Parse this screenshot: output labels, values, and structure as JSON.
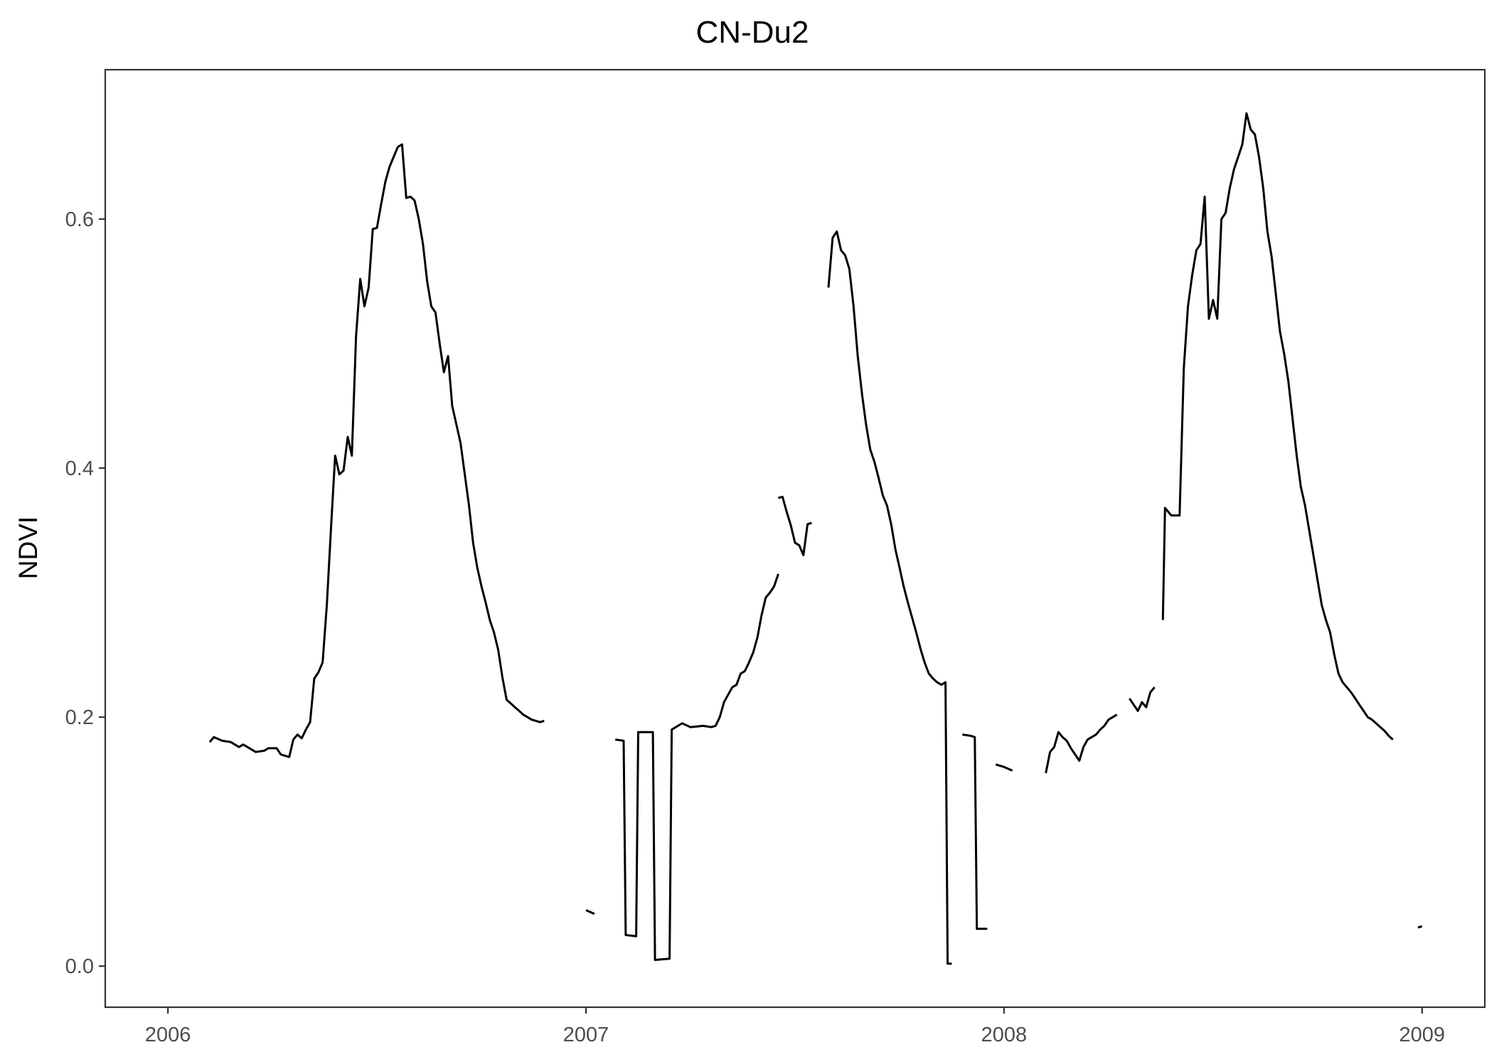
{
  "chart_data": {
    "type": "line",
    "title": "CN-Du2",
    "xlabel": "",
    "ylabel": "NDVI",
    "x_ticks": [
      "2006",
      "2007",
      "2008",
      "2009"
    ],
    "y_ticks": [
      "0.0",
      "0.2",
      "0.4",
      "0.6"
    ],
    "xlim": [
      2005.85,
      2009.15
    ],
    "ylim": [
      -0.033,
      0.72
    ],
    "grid": false,
    "legend": "none",
    "line_color": "#000000",
    "series": [
      {
        "segments": [
          [
            [
              2006.1,
              0.18
            ],
            [
              2006.11,
              0.184
            ],
            [
              2006.13,
              0.181
            ],
            [
              2006.15,
              0.18
            ],
            [
              2006.17,
              0.176
            ],
            [
              2006.18,
              0.178
            ],
            [
              2006.2,
              0.174
            ],
            [
              2006.21,
              0.172
            ],
            [
              2006.23,
              0.173
            ],
            [
              2006.24,
              0.175
            ],
            [
              2006.26,
              0.175
            ],
            [
              2006.27,
              0.17
            ],
            [
              2006.29,
              0.168
            ],
            [
              2006.3,
              0.182
            ],
            [
              2006.31,
              0.186
            ],
            [
              2006.32,
              0.183
            ],
            [
              2006.33,
              0.19
            ],
            [
              2006.34,
              0.196
            ],
            [
              2006.35,
              0.231
            ],
            [
              2006.36,
              0.236
            ],
            [
              2006.37,
              0.244
            ],
            [
              2006.38,
              0.29
            ],
            [
              2006.39,
              0.352
            ],
            [
              2006.4,
              0.41
            ],
            [
              2006.41,
              0.395
            ],
            [
              2006.42,
              0.398
            ],
            [
              2006.43,
              0.425
            ],
            [
              2006.44,
              0.41
            ],
            [
              2006.45,
              0.506
            ],
            [
              2006.46,
              0.552
            ],
            [
              2006.47,
              0.53
            ],
            [
              2006.48,
              0.545
            ],
            [
              2006.49,
              0.592
            ],
            [
              2006.5,
              0.593
            ],
            [
              2006.51,
              0.612
            ],
            [
              2006.52,
              0.63
            ],
            [
              2006.53,
              0.642
            ],
            [
              2006.54,
              0.65
            ],
            [
              2006.55,
              0.658
            ],
            [
              2006.56,
              0.66
            ],
            [
              2006.57,
              0.617
            ],
            [
              2006.58,
              0.618
            ],
            [
              2006.59,
              0.615
            ],
            [
              2006.6,
              0.6
            ],
            [
              2006.61,
              0.58
            ],
            [
              2006.62,
              0.55
            ],
            [
              2006.63,
              0.53
            ],
            [
              2006.64,
              0.525
            ],
            [
              2006.65,
              0.5
            ],
            [
              2006.66,
              0.477
            ],
            [
              2006.67,
              0.49
            ],
            [
              2006.68,
              0.45
            ],
            [
              2006.69,
              0.435
            ],
            [
              2006.7,
              0.42
            ],
            [
              2006.71,
              0.395
            ],
            [
              2006.72,
              0.37
            ],
            [
              2006.73,
              0.34
            ],
            [
              2006.74,
              0.32
            ],
            [
              2006.75,
              0.305
            ],
            [
              2006.76,
              0.292
            ],
            [
              2006.77,
              0.278
            ],
            [
              2006.78,
              0.268
            ],
            [
              2006.79,
              0.254
            ],
            [
              2006.8,
              0.232
            ],
            [
              2006.81,
              0.214
            ],
            [
              2006.82,
              0.211
            ],
            [
              2006.83,
              0.208
            ],
            [
              2006.84,
              0.205
            ],
            [
              2006.85,
              0.202
            ],
            [
              2006.86,
              0.2
            ],
            [
              2006.87,
              0.198
            ],
            [
              2006.88,
              0.197
            ],
            [
              2006.89,
              0.196
            ],
            [
              2006.9,
              0.197
            ]
          ],
          [
            [
              2007.0,
              0.045
            ],
            [
              2007.02,
              0.042
            ]
          ],
          [
            [
              2007.07,
              0.182
            ],
            [
              2007.09,
              0.181
            ],
            [
              2007.095,
              0.025
            ],
            [
              2007.12,
              0.024
            ],
            [
              2007.125,
              0.188
            ],
            [
              2007.16,
              0.188
            ],
            [
              2007.165,
              0.005
            ],
            [
              2007.2,
              0.006
            ],
            [
              2007.205,
              0.19
            ],
            [
              2007.23,
              0.195
            ],
            [
              2007.25,
              0.192
            ],
            [
              2007.28,
              0.193
            ],
            [
              2007.3,
              0.192
            ],
            [
              2007.31,
              0.193
            ],
            [
              2007.32,
              0.2
            ],
            [
              2007.33,
              0.212
            ],
            [
              2007.34,
              0.218
            ],
            [
              2007.35,
              0.224
            ],
            [
              2007.36,
              0.226
            ],
            [
              2007.37,
              0.235
            ],
            [
              2007.38,
              0.237
            ],
            [
              2007.39,
              0.244
            ],
            [
              2007.4,
              0.252
            ],
            [
              2007.41,
              0.264
            ],
            [
              2007.42,
              0.282
            ],
            [
              2007.43,
              0.296
            ],
            [
              2007.44,
              0.3
            ],
            [
              2007.45,
              0.305
            ],
            [
              2007.46,
              0.315
            ]
          ],
          [
            [
              2007.46,
              0.376
            ],
            [
              2007.47,
              0.377
            ],
            [
              2007.48,
              0.365
            ],
            [
              2007.49,
              0.354
            ],
            [
              2007.5,
              0.34
            ],
            [
              2007.51,
              0.338
            ],
            [
              2007.52,
              0.33
            ],
            [
              2007.53,
              0.355
            ],
            [
              2007.54,
              0.356
            ]
          ],
          [
            [
              2007.58,
              0.545
            ],
            [
              2007.59,
              0.585
            ],
            [
              2007.6,
              0.59
            ],
            [
              2007.61,
              0.575
            ],
            [
              2007.62,
              0.571
            ],
            [
              2007.63,
              0.56
            ],
            [
              2007.64,
              0.53
            ],
            [
              2007.65,
              0.49
            ],
            [
              2007.66,
              0.46
            ],
            [
              2007.67,
              0.435
            ],
            [
              2007.68,
              0.415
            ],
            [
              2007.69,
              0.405
            ],
            [
              2007.7,
              0.392
            ],
            [
              2007.71,
              0.378
            ],
            [
              2007.72,
              0.37
            ],
            [
              2007.73,
              0.355
            ],
            [
              2007.74,
              0.335
            ],
            [
              2007.75,
              0.32
            ],
            [
              2007.76,
              0.305
            ],
            [
              2007.77,
              0.292
            ],
            [
              2007.78,
              0.28
            ],
            [
              2007.79,
              0.268
            ],
            [
              2007.8,
              0.255
            ],
            [
              2007.81,
              0.244
            ],
            [
              2007.82,
              0.235
            ],
            [
              2007.83,
              0.231
            ],
            [
              2007.84,
              0.228
            ],
            [
              2007.85,
              0.226
            ],
            [
              2007.86,
              0.228
            ],
            [
              2007.865,
              0.002
            ],
            [
              2007.875,
              0.002
            ]
          ],
          [
            [
              2007.9,
              0.186
            ],
            [
              2007.92,
              0.185
            ],
            [
              2007.93,
              0.184
            ],
            [
              2007.935,
              0.03
            ],
            [
              2007.96,
              0.03
            ]
          ],
          [
            [
              2007.98,
              0.162
            ],
            [
              2008.0,
              0.16
            ],
            [
              2008.02,
              0.157
            ]
          ],
          [
            [
              2008.1,
              0.155
            ],
            [
              2008.11,
              0.172
            ],
            [
              2008.12,
              0.176
            ],
            [
              2008.13,
              0.188
            ],
            [
              2008.14,
              0.184
            ],
            [
              2008.15,
              0.181
            ],
            [
              2008.16,
              0.175
            ],
            [
              2008.17,
              0.17
            ],
            [
              2008.18,
              0.165
            ],
            [
              2008.19,
              0.176
            ],
            [
              2008.2,
              0.182
            ],
            [
              2008.21,
              0.184
            ],
            [
              2008.22,
              0.186
            ],
            [
              2008.23,
              0.19
            ],
            [
              2008.24,
              0.193
            ],
            [
              2008.25,
              0.198
            ],
            [
              2008.26,
              0.2
            ],
            [
              2008.27,
              0.202
            ]
          ],
          [
            [
              2008.3,
              0.215
            ],
            [
              2008.31,
              0.21
            ],
            [
              2008.32,
              0.205
            ],
            [
              2008.33,
              0.212
            ],
            [
              2008.34,
              0.208
            ],
            [
              2008.35,
              0.22
            ],
            [
              2008.36,
              0.224
            ]
          ],
          [
            [
              2008.38,
              0.278
            ],
            [
              2008.385,
              0.368
            ],
            [
              2008.4,
              0.362
            ],
            [
              2008.42,
              0.362
            ],
            [
              2008.43,
              0.48
            ],
            [
              2008.44,
              0.53
            ],
            [
              2008.45,
              0.555
            ],
            [
              2008.46,
              0.575
            ],
            [
              2008.47,
              0.58
            ],
            [
              2008.48,
              0.618
            ],
            [
              2008.49,
              0.52
            ],
            [
              2008.5,
              0.535
            ],
            [
              2008.51,
              0.52
            ],
            [
              2008.52,
              0.6
            ],
            [
              2008.53,
              0.605
            ],
            [
              2008.54,
              0.625
            ],
            [
              2008.55,
              0.64
            ],
            [
              2008.56,
              0.65
            ],
            [
              2008.57,
              0.66
            ],
            [
              2008.58,
              0.685
            ],
            [
              2008.59,
              0.672
            ],
            [
              2008.6,
              0.668
            ],
            [
              2008.61,
              0.65
            ],
            [
              2008.62,
              0.625
            ],
            [
              2008.63,
              0.59
            ],
            [
              2008.64,
              0.57
            ],
            [
              2008.65,
              0.54
            ],
            [
              2008.66,
              0.51
            ],
            [
              2008.67,
              0.492
            ],
            [
              2008.68,
              0.47
            ],
            [
              2008.69,
              0.44
            ],
            [
              2008.7,
              0.41
            ],
            [
              2008.71,
              0.385
            ],
            [
              2008.72,
              0.37
            ],
            [
              2008.73,
              0.35
            ],
            [
              2008.74,
              0.33
            ],
            [
              2008.75,
              0.31
            ],
            [
              2008.76,
              0.29
            ],
            [
              2008.77,
              0.278
            ],
            [
              2008.78,
              0.268
            ],
            [
              2008.79,
              0.25
            ],
            [
              2008.8,
              0.235
            ],
            [
              2008.81,
              0.228
            ],
            [
              2008.82,
              0.224
            ],
            [
              2008.83,
              0.22
            ],
            [
              2008.84,
              0.215
            ],
            [
              2008.85,
              0.21
            ],
            [
              2008.86,
              0.205
            ],
            [
              2008.87,
              0.2
            ],
            [
              2008.88,
              0.198
            ],
            [
              2008.89,
              0.195
            ],
            [
              2008.9,
              0.192
            ],
            [
              2008.91,
              0.189
            ],
            [
              2008.92,
              0.185
            ],
            [
              2008.93,
              0.182
            ]
          ],
          [
            [
              2008.99,
              0.031
            ],
            [
              2009.0,
              0.032
            ]
          ]
        ]
      }
    ]
  }
}
